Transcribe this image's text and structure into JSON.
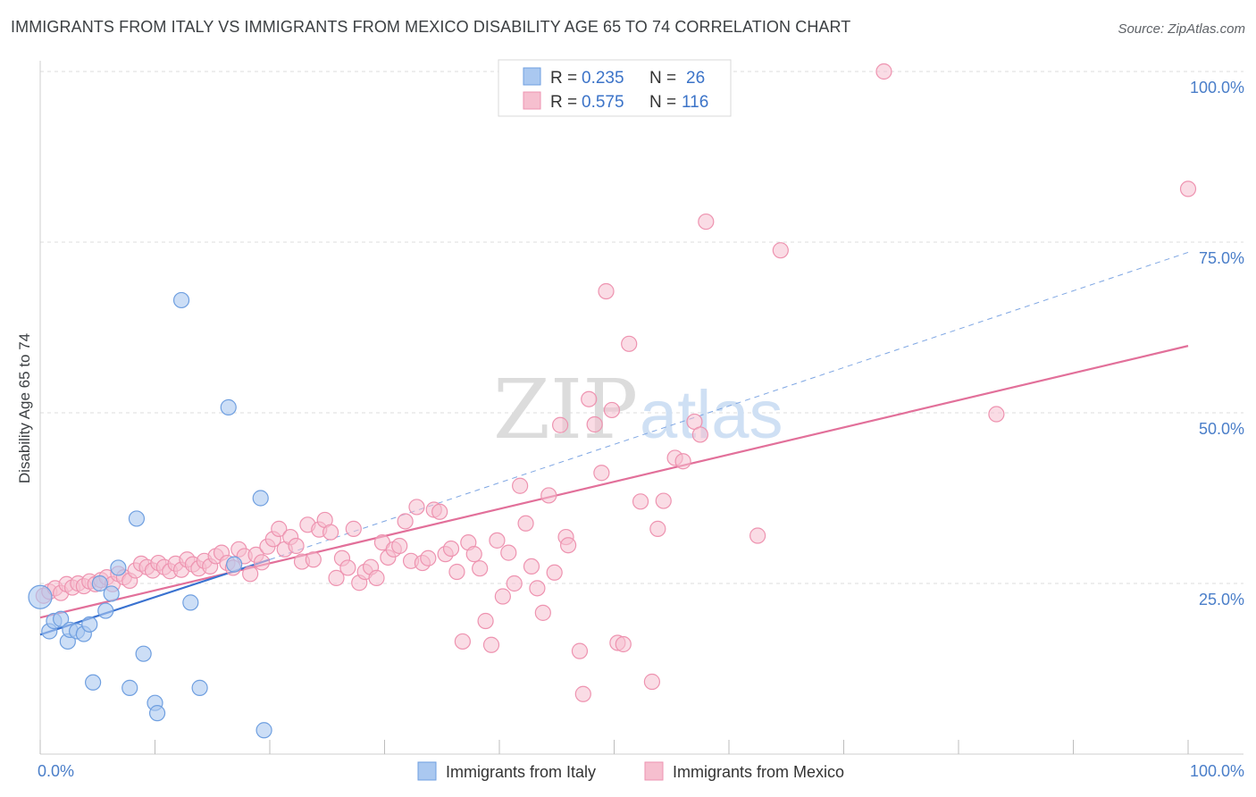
{
  "title": "IMMIGRANTS FROM ITALY VS IMMIGRANTS FROM MEXICO DISABILITY AGE 65 TO 74 CORRELATION CHART",
  "source": "Source: ZipAtlas.com",
  "watermark": {
    "zip": "ZIP",
    "atlas": "atlas"
  },
  "legend": {
    "italy": {
      "r_label": "R =",
      "r_value": "0.235",
      "n_label": "N =",
      "n_value": "26"
    },
    "mexico": {
      "r_label": "R =",
      "r_value": "0.575",
      "n_label": "N =",
      "n_value": "116"
    }
  },
  "colors": {
    "italy_fill": "#aac8f0",
    "italy_stroke": "#6f9fe0",
    "italy_line": "#3a72d0",
    "mexico_fill": "#f6bfcf",
    "mexico_stroke": "#ee93b0",
    "mexico_line": "#e2709a",
    "grid": "#dddddd",
    "tick_text": "#4a7ec9"
  },
  "chart_data": {
    "type": "scatter",
    "title": "IMMIGRANTS FROM ITALY VS IMMIGRANTS FROM MEXICO DISABILITY AGE 65 TO 74 CORRELATION CHART",
    "xlabel": "",
    "ylabel": "Disability Age 65 to 74",
    "xlim": [
      0,
      100
    ],
    "ylim": [
      0,
      100
    ],
    "x_tick_labels": [
      "0.0%",
      "100.0%"
    ],
    "y_tick_labels": [
      "25.0%",
      "50.0%",
      "75.0%",
      "100.0%"
    ],
    "y_ticks": [
      25,
      50,
      75,
      100
    ],
    "grid": true,
    "legend_position": "top-center",
    "series": [
      {
        "name": "Immigrants from Italy",
        "r": 0.235,
        "n": 26,
        "trend": {
          "x": [
            0,
            20
          ],
          "y": [
            17.5,
            28.5
          ]
        },
        "trend_extension": {
          "x": [
            20,
            100
          ],
          "y": [
            28.5,
            73.5
          ]
        },
        "points": [
          [
            0.0,
            23.0
          ],
          [
            0.8,
            18.0
          ],
          [
            1.2,
            19.5
          ],
          [
            1.8,
            19.8
          ],
          [
            2.4,
            16.5
          ],
          [
            2.6,
            18.2
          ],
          [
            3.2,
            18.0
          ],
          [
            3.8,
            17.6
          ],
          [
            4.3,
            19.0
          ],
          [
            4.6,
            10.5
          ],
          [
            5.2,
            25.0
          ],
          [
            5.7,
            21.0
          ],
          [
            6.2,
            23.5
          ],
          [
            6.8,
            27.3
          ],
          [
            7.8,
            9.7
          ],
          [
            8.4,
            34.5
          ],
          [
            9.0,
            14.7
          ],
          [
            10.0,
            7.5
          ],
          [
            10.2,
            6.0
          ],
          [
            12.3,
            66.5
          ],
          [
            13.1,
            22.2
          ],
          [
            13.9,
            9.7
          ],
          [
            16.4,
            50.8
          ],
          [
            16.9,
            27.8
          ],
          [
            19.2,
            37.5
          ],
          [
            19.5,
            3.5
          ]
        ]
      },
      {
        "name": "Immigrants from Mexico",
        "r": 0.575,
        "n": 116,
        "trend": {
          "x": [
            0,
            100
          ],
          "y": [
            20.0,
            59.8
          ]
        },
        "points": [
          [
            0.3,
            23.2
          ],
          [
            0.8,
            23.8
          ],
          [
            1.3,
            24.3
          ],
          [
            1.8,
            23.6
          ],
          [
            2.3,
            24.9
          ],
          [
            2.8,
            24.4
          ],
          [
            3.3,
            25.0
          ],
          [
            3.8,
            24.6
          ],
          [
            4.3,
            25.3
          ],
          [
            4.8,
            24.9
          ],
          [
            5.3,
            25.5
          ],
          [
            5.8,
            25.9
          ],
          [
            6.3,
            24.9
          ],
          [
            6.8,
            26.4
          ],
          [
            7.3,
            25.9
          ],
          [
            7.8,
            25.4
          ],
          [
            8.3,
            26.9
          ],
          [
            8.8,
            27.9
          ],
          [
            9.3,
            27.4
          ],
          [
            9.8,
            26.9
          ],
          [
            10.3,
            28.0
          ],
          [
            10.8,
            27.4
          ],
          [
            11.3,
            26.8
          ],
          [
            11.8,
            27.9
          ],
          [
            12.3,
            27.0
          ],
          [
            12.8,
            28.5
          ],
          [
            13.3,
            27.8
          ],
          [
            13.8,
            27.2
          ],
          [
            14.3,
            28.3
          ],
          [
            14.8,
            27.5
          ],
          [
            15.3,
            29.0
          ],
          [
            15.8,
            29.5
          ],
          [
            16.3,
            28.0
          ],
          [
            16.8,
            27.3
          ],
          [
            17.3,
            30.0
          ],
          [
            17.8,
            29.0
          ],
          [
            18.3,
            26.4
          ],
          [
            18.8,
            29.2
          ],
          [
            19.3,
            28.1
          ],
          [
            19.8,
            30.4
          ],
          [
            20.3,
            31.5
          ],
          [
            20.8,
            33.0
          ],
          [
            21.3,
            30.0
          ],
          [
            21.8,
            31.8
          ],
          [
            22.3,
            30.5
          ],
          [
            22.8,
            28.2
          ],
          [
            23.3,
            33.6
          ],
          [
            23.8,
            28.5
          ],
          [
            24.3,
            32.9
          ],
          [
            24.8,
            34.3
          ],
          [
            25.3,
            32.5
          ],
          [
            25.8,
            25.8
          ],
          [
            26.3,
            28.7
          ],
          [
            26.8,
            27.3
          ],
          [
            27.3,
            33.0
          ],
          [
            27.8,
            25.1
          ],
          [
            28.3,
            26.7
          ],
          [
            28.8,
            27.4
          ],
          [
            29.3,
            25.8
          ],
          [
            29.8,
            31.0
          ],
          [
            30.3,
            28.8
          ],
          [
            30.8,
            30.0
          ],
          [
            31.3,
            30.5
          ],
          [
            31.8,
            34.1
          ],
          [
            32.3,
            28.3
          ],
          [
            32.8,
            36.2
          ],
          [
            33.3,
            28.0
          ],
          [
            33.8,
            28.7
          ],
          [
            34.3,
            35.8
          ],
          [
            34.8,
            35.5
          ],
          [
            35.3,
            29.3
          ],
          [
            35.8,
            30.1
          ],
          [
            36.3,
            26.7
          ],
          [
            36.8,
            16.5
          ],
          [
            37.3,
            31.0
          ],
          [
            37.8,
            29.3
          ],
          [
            38.3,
            27.2
          ],
          [
            38.8,
            19.5
          ],
          [
            39.3,
            16.0
          ],
          [
            39.8,
            31.3
          ],
          [
            40.3,
            23.1
          ],
          [
            40.8,
            29.5
          ],
          [
            41.3,
            25.0
          ],
          [
            41.8,
            39.3
          ],
          [
            42.3,
            33.8
          ],
          [
            42.8,
            27.5
          ],
          [
            43.3,
            24.3
          ],
          [
            43.8,
            20.7
          ],
          [
            44.3,
            37.9
          ],
          [
            44.8,
            26.6
          ],
          [
            45.3,
            48.2
          ],
          [
            45.8,
            31.8
          ],
          [
            46.0,
            30.6
          ],
          [
            47.0,
            15.1
          ],
          [
            47.3,
            8.8
          ],
          [
            47.8,
            52.0
          ],
          [
            48.3,
            48.3
          ],
          [
            48.9,
            41.2
          ],
          [
            49.3,
            67.8
          ],
          [
            49.8,
            50.4
          ],
          [
            50.3,
            16.3
          ],
          [
            50.8,
            16.1
          ],
          [
            51.3,
            60.1
          ],
          [
            52.3,
            37.0
          ],
          [
            53.3,
            10.6
          ],
          [
            53.8,
            33.0
          ],
          [
            54.3,
            37.1
          ],
          [
            55.3,
            43.4
          ],
          [
            56.0,
            42.9
          ],
          [
            57.0,
            48.7
          ],
          [
            57.5,
            46.8
          ],
          [
            58.0,
            78.0
          ],
          [
            62.5,
            32.0
          ],
          [
            64.5,
            73.8
          ],
          [
            73.5,
            100.0
          ],
          [
            83.3,
            49.8
          ],
          [
            100.0,
            82.8
          ]
        ]
      }
    ]
  },
  "bottom_legend": {
    "italy_label": "Immigrants from Italy",
    "mexico_label": "Immigrants from Mexico"
  }
}
